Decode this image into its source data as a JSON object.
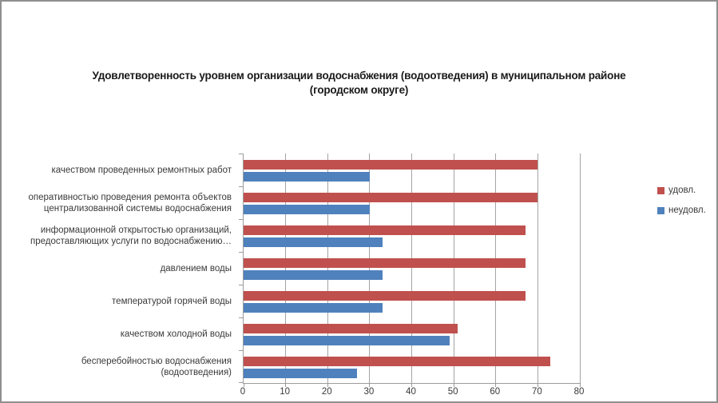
{
  "chart_data": {
    "type": "bar",
    "orientation": "horizontal",
    "title": "Удовлетворенность уровнем организации водоснабжения (водоотведения) в муниципальном районе (городском округе)",
    "title_lines": [
      "Удовлетворенность уровнем организации водоснабжения (водоотведения) в муниципальном районе",
      "(городском округе)"
    ],
    "categories": [
      "качеством проведенных ремонтных работ",
      "оперативностью проведения ремонта объектов\nцентрализованной системы водоснабжения",
      "информационной открытостью организаций,\nпредоставляющих услуги по водоснабжению…",
      "давлением воды",
      "температурой горячей воды",
      "качеством холодной воды",
      "бесперебойностью водоснабжения\n(водоотведения)"
    ],
    "series": [
      {
        "name": "удовл.",
        "color": "#C0504D",
        "values": [
          70,
          70,
          67,
          67,
          67,
          51,
          73
        ]
      },
      {
        "name": "неудовл.",
        "color": "#4F81BD",
        "values": [
          30,
          30,
          33,
          33,
          33,
          49,
          27
        ]
      }
    ],
    "xlim": [
      0,
      80
    ],
    "x_ticks": [
      0,
      10,
      20,
      30,
      40,
      50,
      60,
      70,
      80
    ],
    "grid": true,
    "legend_position": "right",
    "colors": {
      "gridline": "#a3a3a3",
      "axis_line": "#9c9c9c",
      "border": "#8f8f8f",
      "text": "#3a3a3a",
      "title_text": "#1a1a1a",
      "background": "#ffffff"
    }
  }
}
